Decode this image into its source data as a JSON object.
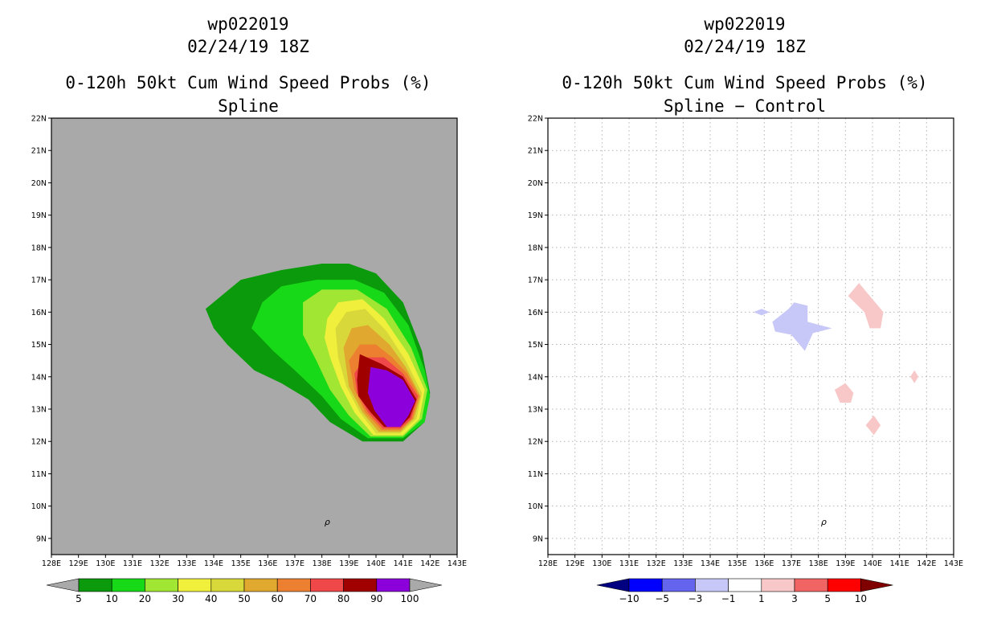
{
  "panels": [
    {
      "storm_id": "wp022019",
      "datetime": "02/24/19 18Z",
      "product_title": "0-120h 50kt Cum Wind Speed Probs (%)",
      "subtitle": "Spline",
      "background_color": "#a9a9a9",
      "grid": false
    },
    {
      "storm_id": "wp022019",
      "datetime": "02/24/19 18Z",
      "product_title": "0-120h 50kt Cum Wind Speed Probs (%)",
      "subtitle": "Spline − Control",
      "background_color": "#ffffff",
      "grid": true
    }
  ],
  "chart_data": [
    {
      "type": "contour-map",
      "title": "0-120h 50kt Cum Wind Speed Probs (%)",
      "subtitle": "Spline",
      "xlim": [
        128,
        143
      ],
      "ylim": [
        8.5,
        22
      ],
      "x_ticks": [
        "128E",
        "129E",
        "130E",
        "131E",
        "132E",
        "133E",
        "134E",
        "135E",
        "136E",
        "137E",
        "138E",
        "139E",
        "140E",
        "141E",
        "142E",
        "143E"
      ],
      "y_ticks": [
        "9N",
        "10N",
        "11N",
        "12N",
        "13N",
        "14N",
        "15N",
        "16N",
        "17N",
        "18N",
        "19N",
        "20N",
        "21N",
        "22N"
      ],
      "legend": {
        "labels": [
          "5",
          "10",
          "20",
          "30",
          "40",
          "50",
          "60",
          "70",
          "80",
          "90",
          "100"
        ],
        "colors": [
          "#a9a9a9",
          "#0b9a0b",
          "#18d918",
          "#a0e632",
          "#f0f03c",
          "#d8d83a",
          "#e0a82e",
          "#ec8030",
          "#f04848",
          "#a00000",
          "#8c00dc",
          "#a9a9a9"
        ]
      },
      "contours": [
        {
          "level": "5-10",
          "color": "#0b9a0b",
          "points": [
            [
              133.7,
              16.1
            ],
            [
              135.0,
              17.0
            ],
            [
              136.5,
              17.3
            ],
            [
              138.0,
              17.5
            ],
            [
              139.0,
              17.5
            ],
            [
              140.0,
              17.2
            ],
            [
              141.0,
              16.3
            ],
            [
              141.7,
              14.8
            ],
            [
              142.0,
              13.5
            ],
            [
              141.8,
              12.6
            ],
            [
              141.0,
              12.0
            ],
            [
              139.5,
              12.0
            ],
            [
              138.3,
              12.6
            ],
            [
              137.5,
              13.3
            ],
            [
              136.5,
              13.8
            ],
            [
              135.5,
              14.2
            ],
            [
              134.5,
              15.0
            ],
            [
              134.0,
              15.5
            ]
          ]
        },
        {
          "level": "10-20",
          "color": "#18d918",
          "points": [
            [
              135.4,
              15.5
            ],
            [
              135.8,
              16.3
            ],
            [
              136.5,
              16.8
            ],
            [
              137.8,
              17.0
            ],
            [
              139.2,
              17.0
            ],
            [
              140.3,
              16.6
            ],
            [
              141.2,
              15.6
            ],
            [
              141.8,
              14.2
            ],
            [
              142.0,
              13.4
            ],
            [
              141.8,
              12.6
            ],
            [
              141.0,
              12.1
            ],
            [
              139.7,
              12.1
            ],
            [
              138.7,
              12.7
            ],
            [
              138.0,
              13.4
            ],
            [
              137.0,
              14.2
            ],
            [
              136.2,
              14.8
            ]
          ]
        },
        {
          "level": "20-30",
          "color": "#a0e632",
          "points": [
            [
              137.3,
              16.3
            ],
            [
              138.0,
              16.7
            ],
            [
              139.3,
              16.7
            ],
            [
              140.4,
              16.1
            ],
            [
              141.3,
              14.9
            ],
            [
              141.9,
              13.6
            ],
            [
              141.7,
              12.7
            ],
            [
              141.0,
              12.15
            ],
            [
              139.8,
              12.15
            ],
            [
              139.0,
              12.8
            ],
            [
              138.3,
              13.6
            ],
            [
              137.8,
              14.5
            ],
            [
              137.3,
              15.3
            ]
          ]
        },
        {
          "level": "30-40",
          "color": "#f0f03c",
          "points": [
            [
              138.2,
              15.8
            ],
            [
              138.6,
              16.3
            ],
            [
              139.5,
              16.4
            ],
            [
              140.3,
              15.8
            ],
            [
              141.2,
              14.7
            ],
            [
              141.8,
              13.6
            ],
            [
              141.6,
              12.7
            ],
            [
              141.0,
              12.2
            ],
            [
              139.9,
              12.2
            ],
            [
              139.2,
              12.9
            ],
            [
              138.7,
              13.7
            ],
            [
              138.3,
              14.6
            ],
            [
              138.1,
              15.2
            ]
          ]
        },
        {
          "level": "40-50",
          "color": "#d8d83a",
          "points": [
            [
              138.5,
              15.5
            ],
            [
              138.9,
              16.0
            ],
            [
              139.6,
              16.1
            ],
            [
              140.4,
              15.4
            ],
            [
              141.1,
              14.5
            ],
            [
              141.7,
              13.5
            ],
            [
              141.5,
              12.7
            ],
            [
              140.9,
              12.25
            ],
            [
              140.0,
              12.25
            ],
            [
              139.4,
              12.9
            ],
            [
              138.9,
              13.7
            ],
            [
              138.6,
              14.6
            ]
          ]
        },
        {
          "level": "50-60",
          "color": "#e0a82e",
          "points": [
            [
              138.8,
              14.9
            ],
            [
              139.1,
              15.5
            ],
            [
              139.7,
              15.6
            ],
            [
              140.5,
              15.0
            ],
            [
              141.1,
              14.3
            ],
            [
              141.65,
              13.4
            ],
            [
              141.4,
              12.7
            ],
            [
              140.9,
              12.3
            ],
            [
              140.1,
              12.3
            ],
            [
              139.5,
              12.9
            ],
            [
              139.0,
              13.7
            ]
          ]
        },
        {
          "level": "60-70",
          "color": "#ec8030",
          "points": [
            [
              139.0,
              14.5
            ],
            [
              139.4,
              15.0
            ],
            [
              140.0,
              15.0
            ],
            [
              140.6,
              14.6
            ],
            [
              141.15,
              14.1
            ],
            [
              141.6,
              13.4
            ],
            [
              141.35,
              12.7
            ],
            [
              140.9,
              12.35
            ],
            [
              140.2,
              12.35
            ],
            [
              139.6,
              12.9
            ],
            [
              139.2,
              13.6
            ]
          ]
        },
        {
          "level": "70-80",
          "color": "#f04848",
          "points": [
            [
              139.2,
              14.1
            ],
            [
              139.6,
              14.6
            ],
            [
              140.3,
              14.6
            ],
            [
              141.0,
              14.1
            ],
            [
              141.55,
              13.4
            ],
            [
              141.3,
              12.7
            ],
            [
              140.9,
              12.4
            ],
            [
              140.25,
              12.4
            ],
            [
              139.7,
              12.9
            ],
            [
              139.3,
              13.5
            ]
          ]
        },
        {
          "level": "80-90",
          "color": "#a00000",
          "points": [
            [
              139.3,
              13.9
            ],
            [
              139.4,
              14.7
            ],
            [
              140.2,
              14.4
            ],
            [
              141.0,
              14.0
            ],
            [
              141.5,
              13.3
            ],
            [
              141.25,
              12.75
            ],
            [
              140.9,
              12.45
            ],
            [
              140.3,
              12.45
            ],
            [
              139.8,
              12.9
            ],
            [
              139.35,
              13.4
            ]
          ]
        },
        {
          "level": "90-100",
          "color": "#8c00dc",
          "points": [
            [
              139.7,
              13.5
            ],
            [
              139.8,
              14.3
            ],
            [
              140.4,
              14.2
            ],
            [
              141.0,
              13.9
            ],
            [
              141.45,
              13.25
            ],
            [
              141.2,
              12.8
            ],
            [
              140.9,
              12.45
            ],
            [
              140.4,
              12.45
            ],
            [
              139.95,
              12.95
            ]
          ]
        }
      ],
      "marker": {
        "lon": 138.2,
        "lat": 9.5,
        "symbol": "ρ"
      }
    },
    {
      "type": "contour-map",
      "title": "0-120h 50kt Cum Wind Speed Probs (%)",
      "subtitle": "Spline − Control",
      "xlim": [
        128,
        143
      ],
      "ylim": [
        8.5,
        22
      ],
      "x_ticks": [
        "128E",
        "129E",
        "130E",
        "131E",
        "132E",
        "133E",
        "134E",
        "135E",
        "136E",
        "137E",
        "138E",
        "139E",
        "140E",
        "141E",
        "142E",
        "143E"
      ],
      "y_ticks": [
        "9N",
        "10N",
        "11N",
        "12N",
        "13N",
        "14N",
        "15N",
        "16N",
        "17N",
        "18N",
        "19N",
        "20N",
        "21N",
        "22N"
      ],
      "legend": {
        "labels": [
          "−10",
          "−5",
          "−3",
          "−1",
          "1",
          "3",
          "5",
          "10"
        ],
        "colors": [
          "#000080",
          "#0000ff",
          "#6464ee",
          "#c8c8f8",
          "#ffffff",
          "#f8c8c8",
          "#f06464",
          "#ff0000",
          "#800000"
        ]
      },
      "contours": [
        {
          "level": "-3--1",
          "color": "#c8c8f8",
          "points": [
            [
              135.6,
              16.0
            ],
            [
              135.9,
              16.1
            ],
            [
              136.2,
              16.0
            ],
            [
              135.9,
              15.9
            ]
          ]
        },
        {
          "level": "-3--1",
          "color": "#c8c8f8",
          "points": [
            [
              136.3,
              15.7
            ],
            [
              136.9,
              16.1
            ],
            [
              137.1,
              16.3
            ],
            [
              137.6,
              16.2
            ],
            [
              137.6,
              15.7
            ],
            [
              138.5,
              15.5
            ],
            [
              137.8,
              15.35
            ],
            [
              137.5,
              14.8
            ],
            [
              137.0,
              15.3
            ],
            [
              136.4,
              15.4
            ]
          ]
        },
        {
          "level": "1-3",
          "color": "#f8c8c8",
          "points": [
            [
              139.1,
              16.5
            ],
            [
              139.5,
              16.9
            ],
            [
              140.0,
              16.4
            ],
            [
              140.4,
              16.0
            ],
            [
              140.3,
              15.5
            ],
            [
              139.9,
              15.5
            ],
            [
              139.7,
              16.0
            ]
          ]
        },
        {
          "level": "1-3",
          "color": "#f8c8c8",
          "points": [
            [
              138.6,
              13.6
            ],
            [
              139.0,
              13.8
            ],
            [
              139.3,
              13.5
            ],
            [
              139.2,
              13.2
            ],
            [
              138.8,
              13.2
            ]
          ]
        },
        {
          "level": "1-3",
          "color": "#f8c8c8",
          "points": [
            [
              139.75,
              12.5
            ],
            [
              140.05,
              12.8
            ],
            [
              140.3,
              12.5
            ],
            [
              140.05,
              12.2
            ]
          ]
        },
        {
          "level": "1-3",
          "color": "#f8c8c8",
          "points": [
            [
              141.4,
              14.0
            ],
            [
              141.55,
              14.2
            ],
            [
              141.7,
              14.0
            ],
            [
              141.55,
              13.8
            ]
          ]
        }
      ],
      "marker": {
        "lon": 138.2,
        "lat": 9.5,
        "symbol": "ρ"
      }
    }
  ]
}
